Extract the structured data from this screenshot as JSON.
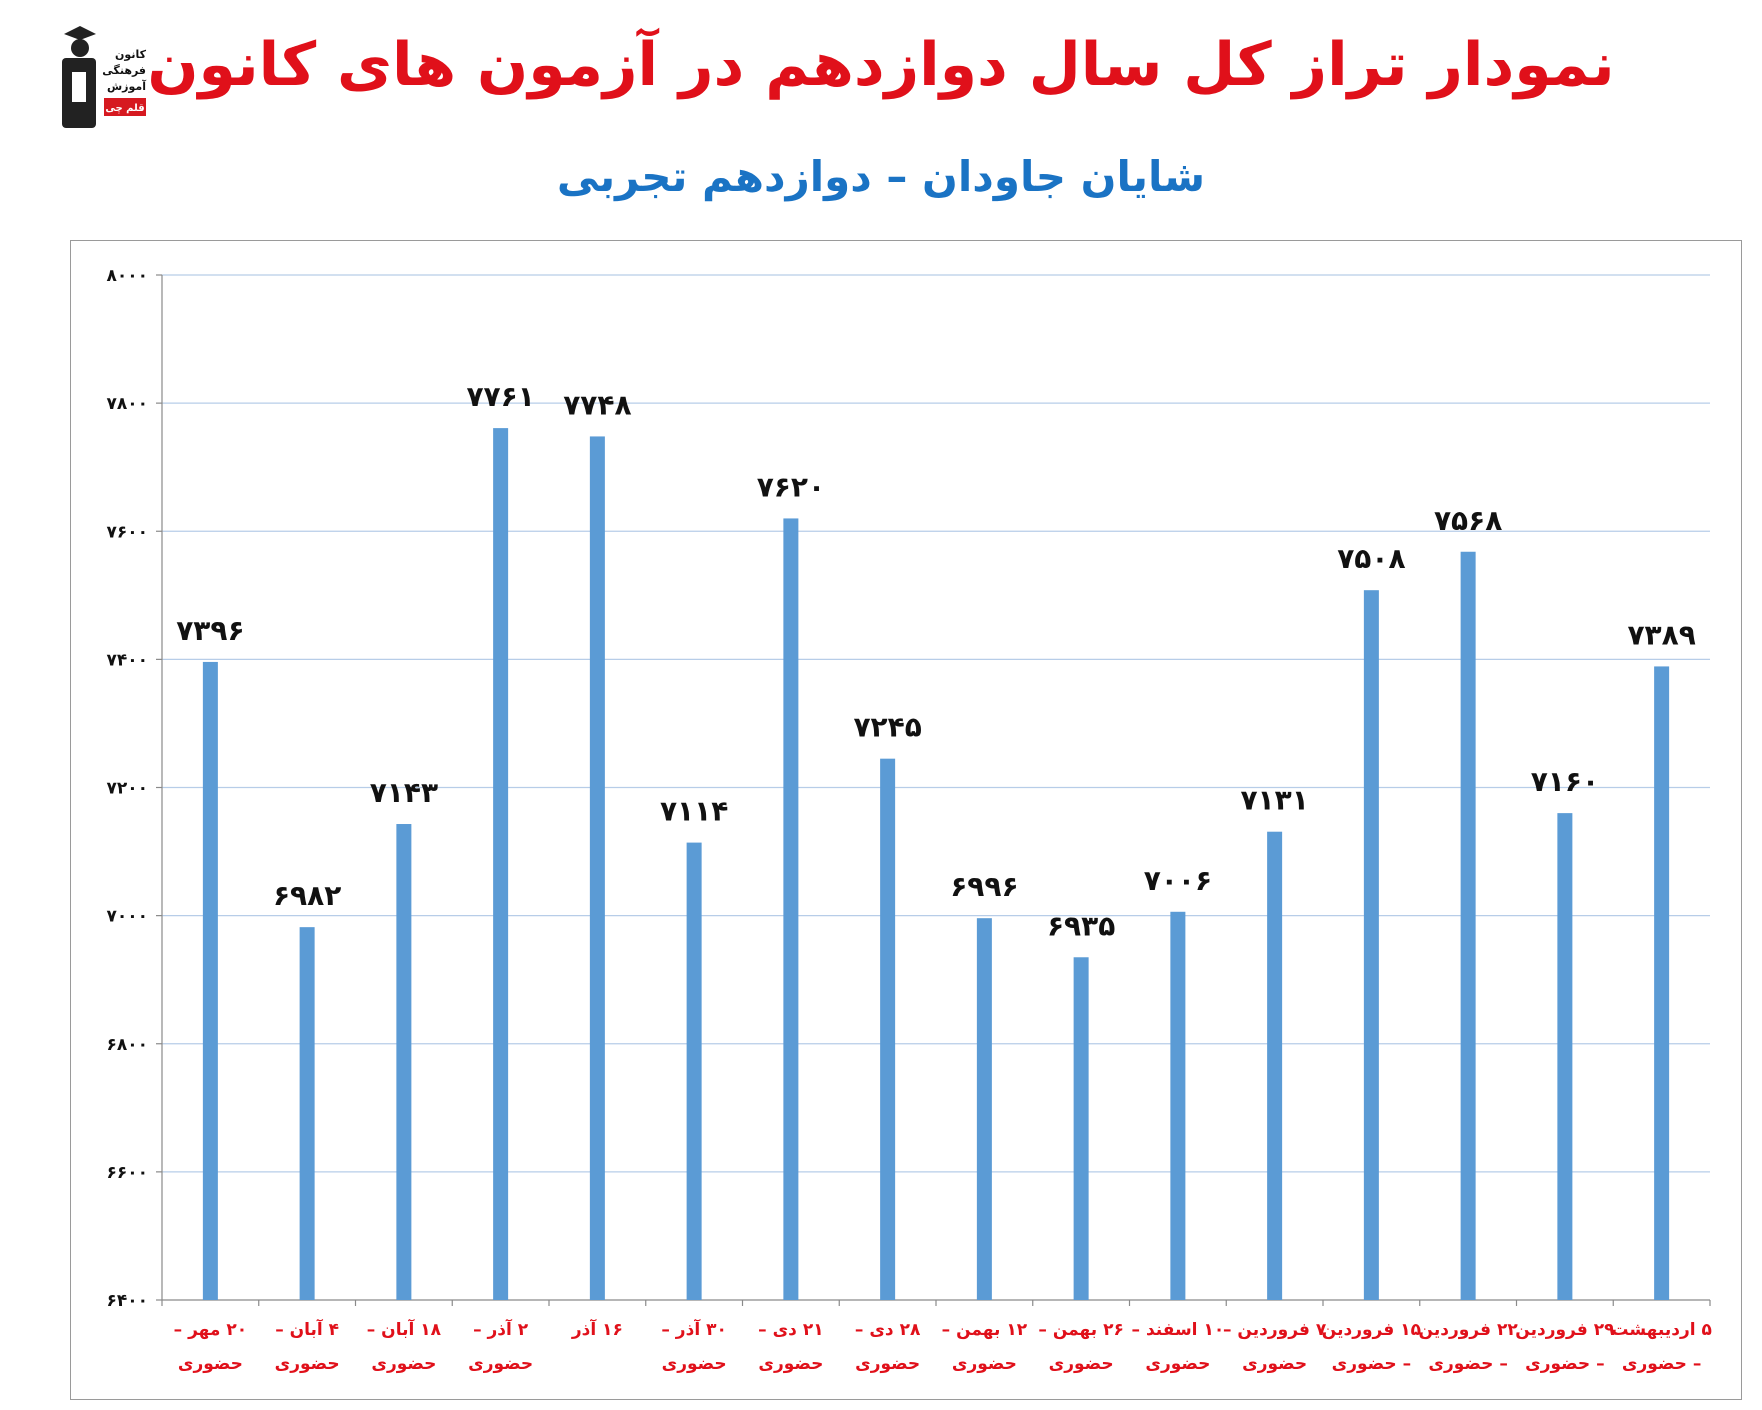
{
  "logo": {
    "lines": [
      "کانون",
      "فرهنگی",
      "آموزش"
    ],
    "badge": "قلم چی"
  },
  "title": "نمودار تراز کل سال دوازدهم در آزمون های کانون",
  "subtitle": "شایان جاودان – دوازدهم تجربی",
  "colors": {
    "title": "#e0101a",
    "subtitle": "#1a73c4",
    "bar": "#5b9bd5",
    "grid": "#b7cde8",
    "category_label": "#e0101a"
  },
  "chart_data": {
    "type": "bar",
    "title": "",
    "xlabel": "",
    "ylabel": "",
    "ylim": [
      6400,
      8000
    ],
    "yticks": [
      6400,
      6600,
      6800,
      7000,
      7200,
      7400,
      7600,
      7800,
      8000
    ],
    "ytick_labels": [
      "۶۴۰۰",
      "۶۶۰۰",
      "۶۸۰۰",
      "۷۰۰۰",
      "۷۲۰۰",
      "۷۴۰۰",
      "۷۶۰۰",
      "۷۸۰۰",
      "۸۰۰۰"
    ],
    "grid": true,
    "legend": "none",
    "categories": [
      [
        "۲۰ مهر –",
        "حضوری"
      ],
      [
        "۴ آبان –",
        "حضوری"
      ],
      [
        "۱۸ آبان –",
        "حضوری"
      ],
      [
        "۲ آذر –",
        "حضوری"
      ],
      [
        "۱۶ آذر"
      ],
      [
        "۳۰ آذر –",
        "حضوری"
      ],
      [
        "۲۱ دی –",
        "حضوری"
      ],
      [
        "۲۸ دی –",
        "حضوری"
      ],
      [
        "۱۲ بهمن –",
        "حضوری"
      ],
      [
        "۲۶ بهمن –",
        "حضوری"
      ],
      [
        "۱۰ اسفند –",
        "حضوری"
      ],
      [
        "۷ فروردین –",
        "حضوری"
      ],
      [
        "۱۵ فروردین",
        "– حضوری"
      ],
      [
        "۲۲ فروردین",
        "– حضوری"
      ],
      [
        "۲۹ فروردین",
        "– حضوری"
      ],
      [
        "۵ اردیبهشت",
        "– حضوری"
      ]
    ],
    "values": [
      7396,
      6982,
      7143,
      7761,
      7748,
      7114,
      7620,
      7245,
      6996,
      6935,
      7006,
      7131,
      7508,
      7568,
      7160,
      7389
    ],
    "value_labels": [
      "۷۳۹۶",
      "۶۹۸۲",
      "۷۱۴۳",
      "۷۷۶۱",
      "۷۷۴۸",
      "۷۱۱۴",
      "۷۶۲۰",
      "۷۲۴۵",
      "۶۹۹۶",
      "۶۹۳۵",
      "۷۰۰۶",
      "۷۱۳۱",
      "۷۵۰۸",
      "۷۵۶۸",
      "۷۱۶۰",
      "۷۳۸۹"
    ]
  }
}
